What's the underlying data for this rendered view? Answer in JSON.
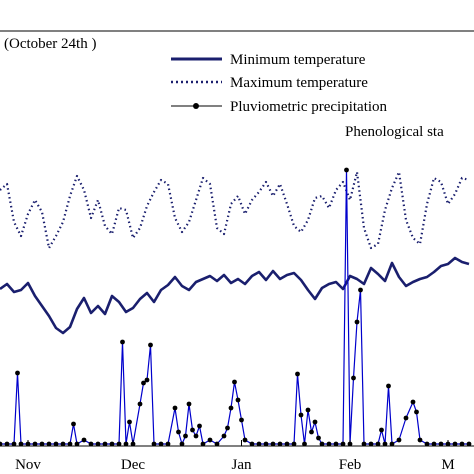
{
  "chart_data": {
    "type": "line",
    "annotations": {
      "date_note": "(October 24th )",
      "phenological_stage": "Phenological sta"
    },
    "x_ticks": [
      "Nov",
      "Dec",
      "Jan",
      "Feb",
      "M"
    ],
    "x_tick_days": [
      8,
      38,
      69,
      100,
      128
    ],
    "legend": {
      "placement": "top-right"
    },
    "series": [
      {
        "name": "Minimum temperature",
        "style": "solid",
        "color": "#1a1f6e",
        "points": [
          [
            0,
            289
          ],
          [
            2,
            284
          ],
          [
            4,
            292
          ],
          [
            6,
            290
          ],
          [
            8,
            283
          ],
          [
            10,
            296
          ],
          [
            12,
            306
          ],
          [
            14,
            316
          ],
          [
            16,
            328
          ],
          [
            18,
            333
          ],
          [
            20,
            327
          ],
          [
            22,
            309
          ],
          [
            24,
            298
          ],
          [
            26,
            313
          ],
          [
            28,
            306
          ],
          [
            30,
            314
          ],
          [
            32,
            296
          ],
          [
            34,
            302
          ],
          [
            36,
            312
          ],
          [
            38,
            308
          ],
          [
            40,
            299
          ],
          [
            42,
            293
          ],
          [
            44,
            302
          ],
          [
            46,
            290
          ],
          [
            48,
            285
          ],
          [
            50,
            277
          ],
          [
            52,
            286
          ],
          [
            54,
            290
          ],
          [
            56,
            282
          ],
          [
            58,
            279
          ],
          [
            60,
            276
          ],
          [
            62,
            281
          ],
          [
            64,
            275
          ],
          [
            66,
            283
          ],
          [
            68,
            279
          ],
          [
            70,
            284
          ],
          [
            72,
            276
          ],
          [
            74,
            272
          ],
          [
            76,
            280
          ],
          [
            78,
            271
          ],
          [
            80,
            279
          ],
          [
            82,
            275
          ],
          [
            84,
            273
          ],
          [
            86,
            280
          ],
          [
            88,
            290
          ],
          [
            90,
            299
          ],
          [
            92,
            288
          ],
          [
            94,
            284
          ],
          [
            96,
            282
          ],
          [
            98,
            289
          ],
          [
            100,
            276
          ],
          [
            102,
            279
          ],
          [
            104,
            284
          ],
          [
            106,
            268
          ],
          [
            108,
            274
          ],
          [
            110,
            281
          ],
          [
            112,
            263
          ],
          [
            114,
            277
          ],
          [
            116,
            286
          ],
          [
            118,
            282
          ],
          [
            120,
            279
          ],
          [
            122,
            277
          ],
          [
            124,
            272
          ],
          [
            126,
            266
          ],
          [
            128,
            264
          ],
          [
            130,
            258
          ],
          [
            132,
            262
          ],
          [
            134,
            264
          ]
        ]
      },
      {
        "name": "Maximum temperature",
        "style": "dotted",
        "color": "#1a1f6e",
        "points": [
          [
            0,
            190
          ],
          [
            2,
            184
          ],
          [
            4,
            222
          ],
          [
            6,
            236
          ],
          [
            8,
            214
          ],
          [
            10,
            200
          ],
          [
            12,
            212
          ],
          [
            14,
            248
          ],
          [
            16,
            236
          ],
          [
            18,
            222
          ],
          [
            20,
            196
          ],
          [
            22,
            176
          ],
          [
            24,
            190
          ],
          [
            26,
            218
          ],
          [
            28,
            200
          ],
          [
            30,
            226
          ],
          [
            32,
            234
          ],
          [
            34,
            208
          ],
          [
            36,
            210
          ],
          [
            38,
            238
          ],
          [
            40,
            228
          ],
          [
            42,
            206
          ],
          [
            44,
            192
          ],
          [
            46,
            180
          ],
          [
            48,
            184
          ],
          [
            50,
            218
          ],
          [
            52,
            232
          ],
          [
            54,
            222
          ],
          [
            56,
            200
          ],
          [
            58,
            178
          ],
          [
            60,
            184
          ],
          [
            62,
            228
          ],
          [
            64,
            234
          ],
          [
            66,
            204
          ],
          [
            68,
            196
          ],
          [
            70,
            214
          ],
          [
            72,
            200
          ],
          [
            74,
            192
          ],
          [
            76,
            182
          ],
          [
            78,
            196
          ],
          [
            80,
            184
          ],
          [
            82,
            204
          ],
          [
            84,
            226
          ],
          [
            86,
            232
          ],
          [
            88,
            220
          ],
          [
            90,
            198
          ],
          [
            92,
            196
          ],
          [
            94,
            208
          ],
          [
            96,
            190
          ],
          [
            98,
            182
          ],
          [
            100,
            200
          ],
          [
            102,
            172
          ],
          [
            104,
            228
          ],
          [
            106,
            248
          ],
          [
            108,
            244
          ],
          [
            110,
            210
          ],
          [
            112,
            188
          ],
          [
            114,
            172
          ],
          [
            116,
            220
          ],
          [
            118,
            238
          ],
          [
            120,
            244
          ],
          [
            122,
            204
          ],
          [
            124,
            178
          ],
          [
            126,
            182
          ],
          [
            128,
            204
          ],
          [
            130,
            194
          ],
          [
            132,
            178
          ],
          [
            134,
            180
          ]
        ]
      },
      {
        "name": "Pluviometric precipitation",
        "style": "line-with-markers",
        "color": "#0000cc",
        "points": [
          [
            0,
            444
          ],
          [
            2,
            444
          ],
          [
            4,
            444
          ],
          [
            5,
            373
          ],
          [
            6,
            444
          ],
          [
            8,
            444
          ],
          [
            10,
            444
          ],
          [
            12,
            444
          ],
          [
            14,
            444
          ],
          [
            16,
            444
          ],
          [
            18,
            444
          ],
          [
            20,
            444
          ],
          [
            21,
            424
          ],
          [
            22,
            444
          ],
          [
            24,
            440
          ],
          [
            26,
            444
          ],
          [
            28,
            444
          ],
          [
            30,
            444
          ],
          [
            32,
            444
          ],
          [
            34,
            444
          ],
          [
            35,
            342
          ],
          [
            36,
            444
          ],
          [
            37,
            422
          ],
          [
            38,
            444
          ],
          [
            40,
            404
          ],
          [
            41,
            383
          ],
          [
            42,
            380
          ],
          [
            43,
            345
          ],
          [
            44,
            444
          ],
          [
            46,
            444
          ],
          [
            48,
            444
          ],
          [
            50,
            408
          ],
          [
            51,
            432
          ],
          [
            52,
            444
          ],
          [
            53,
            436
          ],
          [
            54,
            404
          ],
          [
            55,
            430
          ],
          [
            56,
            436
          ],
          [
            57,
            426
          ],
          [
            58,
            444
          ],
          [
            60,
            440
          ],
          [
            62,
            444
          ],
          [
            64,
            436
          ],
          [
            65,
            428
          ],
          [
            66,
            408
          ],
          [
            67,
            382
          ],
          [
            68,
            400
          ],
          [
            69,
            420
          ],
          [
            70,
            440
          ],
          [
            72,
            444
          ],
          [
            74,
            444
          ],
          [
            76,
            444
          ],
          [
            78,
            444
          ],
          [
            80,
            444
          ],
          [
            82,
            444
          ],
          [
            84,
            444
          ],
          [
            85,
            374
          ],
          [
            86,
            415
          ],
          [
            87,
            444
          ],
          [
            88,
            410
          ],
          [
            89,
            432
          ],
          [
            90,
            422
          ],
          [
            91,
            438
          ],
          [
            92,
            444
          ],
          [
            94,
            444
          ],
          [
            96,
            444
          ],
          [
            98,
            444
          ],
          [
            99,
            170
          ],
          [
            100,
            444
          ],
          [
            101,
            378
          ],
          [
            102,
            322
          ],
          [
            103,
            290
          ],
          [
            104,
            444
          ],
          [
            106,
            444
          ],
          [
            108,
            444
          ],
          [
            109,
            430
          ],
          [
            110,
            444
          ],
          [
            111,
            386
          ],
          [
            112,
            444
          ],
          [
            114,
            440
          ],
          [
            116,
            418
          ],
          [
            118,
            402
          ],
          [
            119,
            412
          ],
          [
            120,
            440
          ],
          [
            122,
            444
          ],
          [
            124,
            444
          ],
          [
            126,
            444
          ],
          [
            128,
            444
          ],
          [
            130,
            444
          ],
          [
            132,
            444
          ],
          [
            134,
            444
          ]
        ]
      }
    ],
    "grid": false
  }
}
